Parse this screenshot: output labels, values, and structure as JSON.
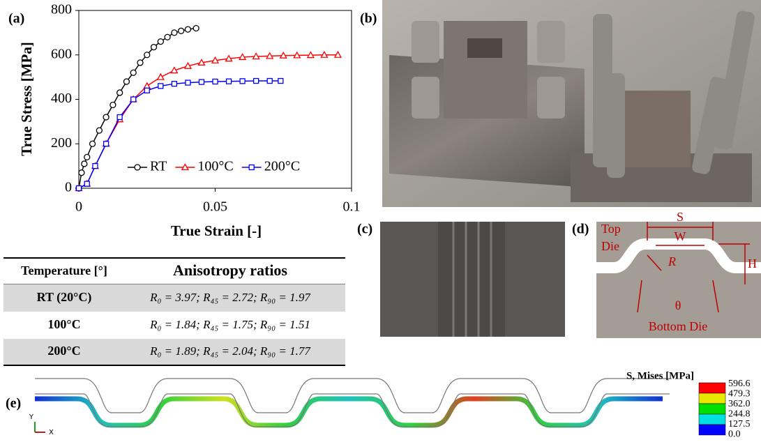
{
  "chart_data": {
    "type": "line",
    "panel_label": "(a)",
    "x_label": "True Strain [-]",
    "y_label": "True Stress [MPa]",
    "xlim": [
      0,
      0.1
    ],
    "xticks": [
      0,
      0.05,
      0.1
    ],
    "ylim": [
      0,
      800
    ],
    "yticks": [
      0,
      200,
      400,
      600,
      800
    ],
    "legend": "lower right",
    "series": [
      {
        "name": "RT",
        "color": "#000000",
        "marker": "circle",
        "x": [
          0,
          0.001,
          0.002,
          0.003,
          0.005,
          0.0075,
          0.01,
          0.0125,
          0.015,
          0.0175,
          0.02,
          0.0225,
          0.025,
          0.0275,
          0.03,
          0.0325,
          0.035,
          0.0375,
          0.04,
          0.043
        ],
        "values": [
          0,
          70,
          110,
          140,
          200,
          260,
          320,
          375,
          430,
          480,
          520,
          565,
          600,
          635,
          660,
          680,
          700,
          708,
          715,
          720
        ]
      },
      {
        "name": "100°C",
        "color": "#ff0000",
        "marker": "triangle",
        "x": [
          0,
          0.003,
          0.006,
          0.01,
          0.015,
          0.02,
          0.025,
          0.03,
          0.035,
          0.04,
          0.045,
          0.05,
          0.055,
          0.06,
          0.065,
          0.07,
          0.075,
          0.08,
          0.085,
          0.09,
          0.095
        ],
        "values": [
          0,
          20,
          100,
          200,
          310,
          400,
          460,
          500,
          530,
          550,
          565,
          575,
          583,
          590,
          593,
          595,
          597,
          598,
          599,
          600,
          600
        ]
      },
      {
        "name": "200°C",
        "color": "#0000ff",
        "marker": "square",
        "x": [
          0,
          0.003,
          0.006,
          0.01,
          0.015,
          0.02,
          0.025,
          0.03,
          0.035,
          0.04,
          0.045,
          0.05,
          0.055,
          0.06,
          0.065,
          0.07,
          0.074
        ],
        "values": [
          0,
          20,
          100,
          200,
          320,
          400,
          440,
          460,
          470,
          475,
          478,
          480,
          481,
          482,
          483,
          483,
          483
        ]
      }
    ]
  },
  "photos": {
    "b": "(b)",
    "c": "(c)"
  },
  "table": {
    "header": [
      "Temperature [°]",
      "Anisotropy ratios"
    ],
    "rows": [
      [
        "RT (20°C)",
        "R₀ = 3.97;  R₄₅ = 2.72;  R₉₀ = 1.97"
      ],
      [
        "100°C",
        "R₀ = 1.84;  R₄₅ = 1.75;  R₉₀ = 1.51"
      ],
      [
        "200°C",
        "R₀ = 1.89;  R₄₅ = 2.04;  R₉₀ = 1.77"
      ]
    ]
  },
  "diagram": {
    "panel_label": "(d)",
    "top_die": [
      "Top",
      "Die"
    ],
    "s": "S",
    "w": "W",
    "r": "R",
    "h": "H",
    "theta": "θ",
    "bottom_die": "Bottom Die"
  },
  "fem": {
    "panel_label": "(e)",
    "legend_title": "S, Mises [MPa]",
    "levels": [
      "596.6",
      "479.3",
      "362.0",
      "244.8",
      "127.5",
      "0.0"
    ],
    "axis_y": "Y",
    "axis_x": "X"
  }
}
